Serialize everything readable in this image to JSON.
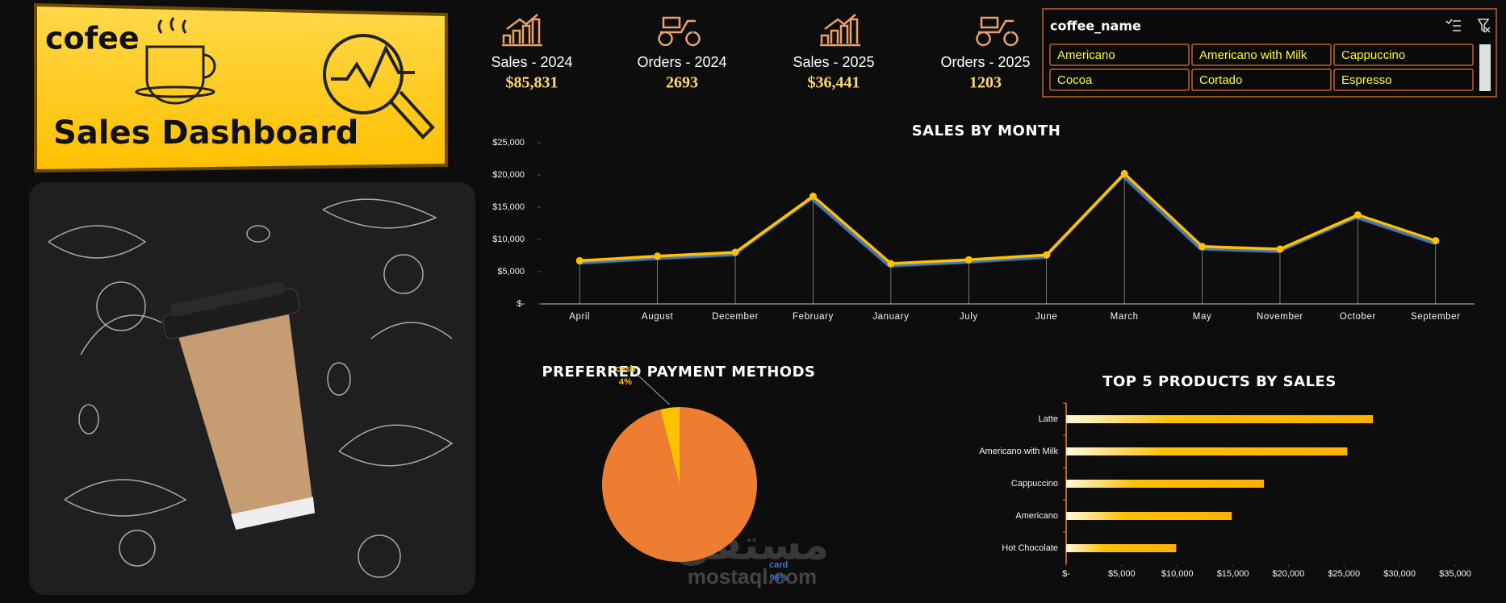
{
  "header": {
    "brand": "cofee",
    "title": "Sales Dashboard"
  },
  "kpis": [
    {
      "label": "Sales - 2024",
      "value": "$85,831"
    },
    {
      "label": "Orders - 2024",
      "value": "2693"
    },
    {
      "label": "Sales - 2025",
      "value": "$36,441"
    },
    {
      "label": "Orders - 2025",
      "value": "1203"
    }
  ],
  "slicer": {
    "title": "coffee_name",
    "items": [
      "Americano",
      "Americano with Milk",
      "Cappuccino",
      "Cocoa",
      "Cortado",
      "Espresso"
    ]
  },
  "watermark": {
    "arabic": "مستقل",
    "latin": "mostaql.com"
  },
  "chart_data": [
    {
      "type": "line",
      "title": "SALES BY MONTH",
      "categories": [
        "April",
        "August",
        "December",
        "February",
        "January",
        "July",
        "June",
        "March",
        "May",
        "November",
        "October",
        "September"
      ],
      "values": [
        6700,
        7400,
        8000,
        16700,
        6250,
        6850,
        7600,
        20200,
        8900,
        8500,
        13800,
        9800
      ],
      "color": "#ffc000",
      "ylim": [
        0,
        25000
      ],
      "yticks": [
        {
          "value": 0,
          "label": "$-"
        },
        {
          "value": 5000,
          "label": "$5,000"
        },
        {
          "value": 10000,
          "label": "$10,000"
        },
        {
          "value": 15000,
          "label": "$15,000"
        },
        {
          "value": 20000,
          "label": "$20,000"
        },
        {
          "value": 25000,
          "label": "$25,000"
        }
      ]
    },
    {
      "type": "pie",
      "title": "PREFERRED PAYMENT METHODS",
      "categories": [
        "card",
        "cash"
      ],
      "values": [
        96,
        4
      ],
      "value_labels": [
        "96%",
        "4%"
      ],
      "colors": [
        "#ed7d31",
        "#ffc000"
      ]
    },
    {
      "type": "bar",
      "orientation": "horizontal",
      "title": "TOP 5 PRODUCTS BY SALES",
      "categories": [
        "Latte",
        "Americano with Milk",
        "Cappuccino",
        "Americano",
        "Hot Chocolate"
      ],
      "values": [
        27600,
        25300,
        17800,
        14900,
        9900
      ],
      "color": "#ffc000",
      "xlim": [
        0,
        35000
      ],
      "xticks": [
        {
          "value": 0,
          "label": "$-"
        },
        {
          "value": 5000,
          "label": "$5,000"
        },
        {
          "value": 10000,
          "label": "$10,000"
        },
        {
          "value": 15000,
          "label": "$15,000"
        },
        {
          "value": 20000,
          "label": "$20,000"
        },
        {
          "value": 25000,
          "label": "$25,000"
        },
        {
          "value": 30000,
          "label": "$30,000"
        },
        {
          "value": 35000,
          "label": "$35,000"
        }
      ]
    }
  ]
}
